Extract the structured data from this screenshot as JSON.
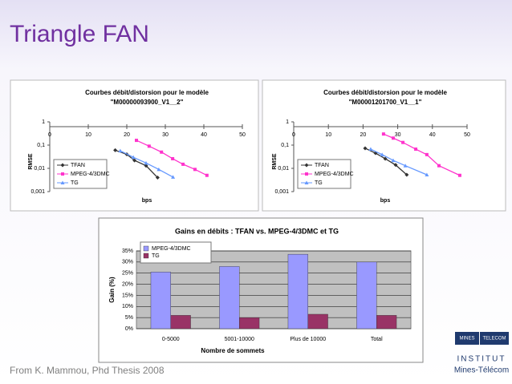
{
  "slide": {
    "title": "Triangle FAN",
    "footer": "From K. Mammou, Phd Thesis 2008",
    "logo": [
      "MINES",
      "TELECOM",
      "INSTITUT",
      "Mines-Télécom"
    ]
  },
  "chart_data": [
    {
      "type": "line",
      "title": "Courbes débit/distorsion pour le modèle",
      "subtitle": "\"M00000093900_V1__2\"",
      "x_label": "bps",
      "y_label": "RMSE",
      "yscale": "log",
      "legend": "lower left",
      "xlim": [
        0,
        50
      ],
      "xticks": [
        0,
        10,
        20,
        30,
        40,
        50
      ],
      "ylim": [
        0.001,
        1
      ],
      "yticks": [
        {
          "value": 0.001,
          "label": "0,001"
        },
        {
          "value": 0.01,
          "label": "0,01"
        },
        {
          "value": 0.1,
          "label": "0,1"
        },
        1
      ],
      "series": [
        {
          "name": "TFAN",
          "color": "#333333",
          "marker": "diamond",
          "x": [
            17,
            20,
            22,
            25,
            28
          ],
          "values": [
            0.06,
            0.04,
            0.022,
            0.013,
            0.004
          ]
        },
        {
          "name": "MPEG-4/3DMC",
          "color": "#ff33cc",
          "marker": "square",
          "x": [
            22.5,
            25.8,
            29,
            31.9,
            34.6,
            37.7,
            40.8
          ],
          "values": [
            0.16,
            0.09,
            0.05,
            0.026,
            0.015,
            0.009,
            0.005
          ]
        },
        {
          "name": "TG",
          "color": "#6699ff",
          "marker": "triangle",
          "x": [
            18.3,
            21.7,
            25,
            28.3,
            32
          ],
          "values": [
            0.057,
            0.03,
            0.017,
            0.009,
            0.0042
          ]
        }
      ]
    },
    {
      "type": "line",
      "title": "Courbes débit/distorsion pour le modèle",
      "subtitle": "\"M00001201700_V1__1\"",
      "x_label": "bps",
      "y_label": "RMSE",
      "yscale": "log",
      "legend": "lower left",
      "xlim": [
        0,
        50
      ],
      "xticks": [
        0,
        10,
        20,
        30,
        40,
        50
      ],
      "ylim": [
        0.001,
        1
      ],
      "yticks": [
        {
          "value": 0.001,
          "label": "0,001"
        },
        {
          "value": 0.01,
          "label": "0,01"
        },
        {
          "value": 0.1,
          "label": "0,1"
        },
        1
      ],
      "series": [
        {
          "name": "TFAN",
          "color": "#333333",
          "marker": "diamond",
          "x": [
            20.6,
            23.6,
            26.4,
            29.4,
            32.6
          ],
          "values": [
            0.073,
            0.045,
            0.026,
            0.014,
            0.0053
          ]
        },
        {
          "name": "MPEG-4/3DMC",
          "color": "#ff33cc",
          "marker": "square",
          "x": [
            25.9,
            28.7,
            31.5,
            35.2,
            38.4,
            41.9,
            47.9
          ],
          "values": [
            0.3,
            0.2,
            0.13,
            0.067,
            0.039,
            0.013,
            0.005
          ]
        },
        {
          "name": "TG",
          "color": "#6699ff",
          "marker": "triangle",
          "x": [
            22.2,
            25.5,
            28.7,
            32.2,
            38.4
          ],
          "values": [
            0.067,
            0.039,
            0.022,
            0.013,
            0.0053
          ]
        }
      ]
    },
    {
      "type": "bar",
      "title": "Gains en débits : TFAN vs. MPEG-4/3DMC et TG",
      "x_label": "Nombre de sommets",
      "y_label": "Gain (%)",
      "legend": "upper left",
      "grid": true,
      "categories": [
        "0-5000",
        "5001-10000",
        "Plus de 10000",
        "Total"
      ],
      "ylim": [
        0,
        35
      ],
      "yticks": [
        {
          "value": 0,
          "label": "0%"
        },
        {
          "value": 5,
          "label": "5%"
        },
        {
          "value": 10,
          "label": "10%"
        },
        {
          "value": 15,
          "label": "15%"
        },
        {
          "value": 20,
          "label": "20%"
        },
        {
          "value": 25,
          "label": "25%"
        },
        {
          "value": 30,
          "label": "30%"
        },
        {
          "value": 35,
          "label": "35%"
        }
      ],
      "series": [
        {
          "name": "MPEG-4/3DMC",
          "color": "#9999ff",
          "values": [
            25.5,
            28,
            33.5,
            30
          ]
        },
        {
          "name": "TG",
          "color": "#993366",
          "values": [
            6,
            5,
            6.5,
            6
          ]
        }
      ]
    }
  ]
}
